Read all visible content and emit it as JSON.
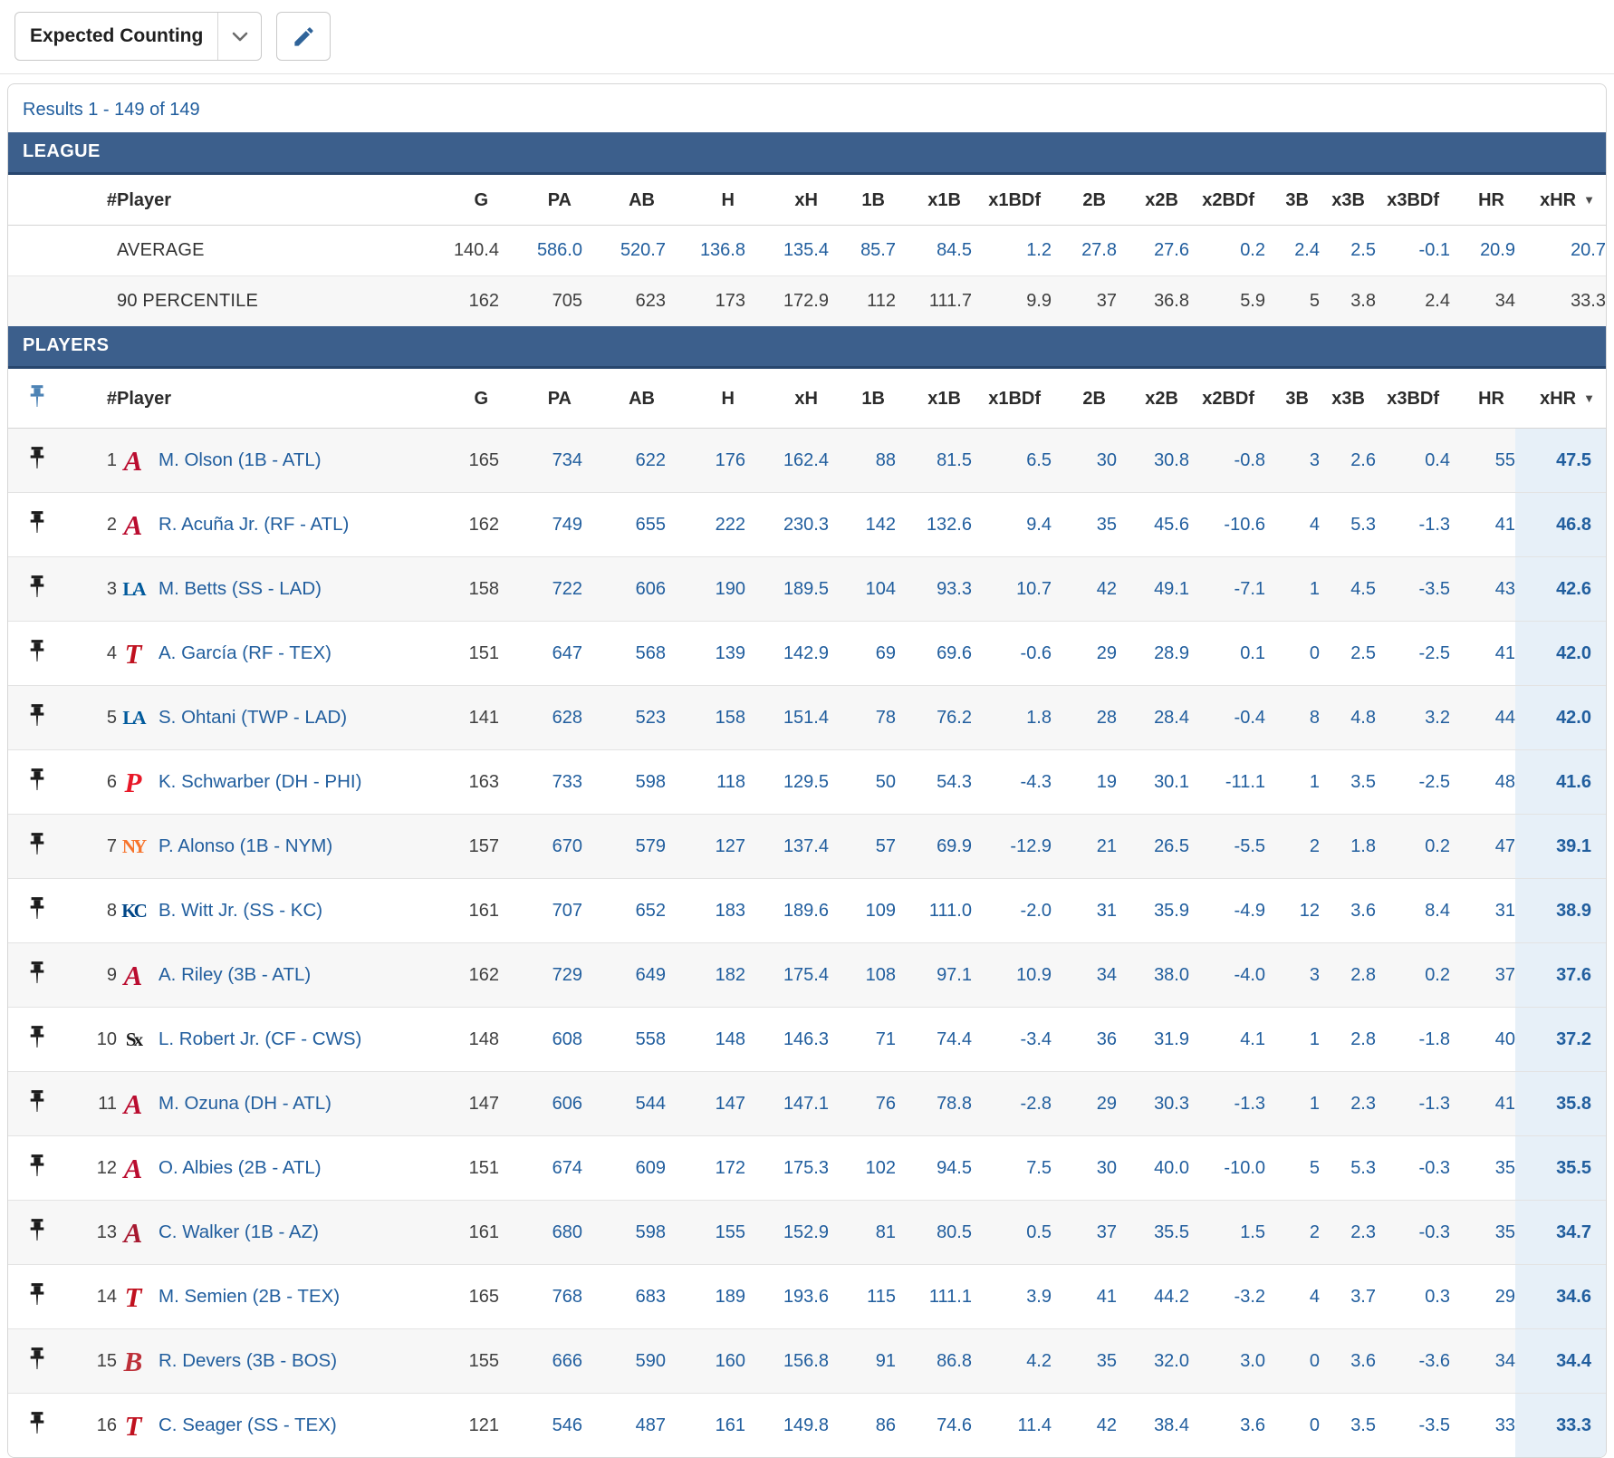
{
  "toolbar": {
    "view_selected": "Expected Counting"
  },
  "results_summary": "Results 1 - 149 of 149",
  "table": {
    "rank_header": "#",
    "player_header": "Player",
    "stat_columns": [
      "G",
      "PA",
      "AB",
      "H",
      "xH",
      "1B",
      "x1B",
      "x1BDf",
      "2B",
      "x2B",
      "x2BDf",
      "3B",
      "x3B",
      "x3BDf",
      "HR",
      "xHR"
    ],
    "sorted_column": "xHR",
    "sort_direction": "desc"
  },
  "league": {
    "title": "LEAGUE",
    "rows": [
      {
        "label": "AVERAGE",
        "values_blue": true,
        "values": [
          "140.4",
          "586.0",
          "520.7",
          "136.8",
          "135.4",
          "85.7",
          "84.5",
          "1.2",
          "27.8",
          "27.6",
          "0.2",
          "2.4",
          "2.5",
          "-0.1",
          "20.9",
          "20.7"
        ]
      },
      {
        "label": "90 PERCENTILE",
        "values_blue": false,
        "values": [
          "162",
          "705",
          "623",
          "173",
          "172.9",
          "112",
          "111.7",
          "9.9",
          "37",
          "36.8",
          "5.9",
          "5",
          "3.8",
          "2.4",
          "34",
          "33.3"
        ]
      }
    ]
  },
  "players": {
    "title": "PLAYERS",
    "rows": [
      {
        "rank": "1",
        "team": "ATL",
        "name": "M. Olson (1B - ATL)",
        "values": [
          "165",
          "734",
          "622",
          "176",
          "162.4",
          "88",
          "81.5",
          "6.5",
          "30",
          "30.8",
          "-0.8",
          "3",
          "2.6",
          "0.4",
          "55",
          "47.5"
        ]
      },
      {
        "rank": "2",
        "team": "ATL",
        "name": "R. Acuña Jr. (RF - ATL)",
        "values": [
          "162",
          "749",
          "655",
          "222",
          "230.3",
          "142",
          "132.6",
          "9.4",
          "35",
          "45.6",
          "-10.6",
          "4",
          "5.3",
          "-1.3",
          "41",
          "46.8"
        ]
      },
      {
        "rank": "3",
        "team": "LAD",
        "name": "M. Betts (SS - LAD)",
        "values": [
          "158",
          "722",
          "606",
          "190",
          "189.5",
          "104",
          "93.3",
          "10.7",
          "42",
          "49.1",
          "-7.1",
          "1",
          "4.5",
          "-3.5",
          "43",
          "42.6"
        ]
      },
      {
        "rank": "4",
        "team": "TEX",
        "name": "A. García (RF - TEX)",
        "values": [
          "151",
          "647",
          "568",
          "139",
          "142.9",
          "69",
          "69.6",
          "-0.6",
          "29",
          "28.9",
          "0.1",
          "0",
          "2.5",
          "-2.5",
          "41",
          "42.0"
        ]
      },
      {
        "rank": "5",
        "team": "LAD",
        "name": "S. Ohtani (TWP - LAD)",
        "values": [
          "141",
          "628",
          "523",
          "158",
          "151.4",
          "78",
          "76.2",
          "1.8",
          "28",
          "28.4",
          "-0.4",
          "8",
          "4.8",
          "3.2",
          "44",
          "42.0"
        ]
      },
      {
        "rank": "6",
        "team": "PHI",
        "name": "K. Schwarber (DH - PHI)",
        "values": [
          "163",
          "733",
          "598",
          "118",
          "129.5",
          "50",
          "54.3",
          "-4.3",
          "19",
          "30.1",
          "-11.1",
          "1",
          "3.5",
          "-2.5",
          "48",
          "41.6"
        ]
      },
      {
        "rank": "7",
        "team": "NYM",
        "name": "P. Alonso (1B - NYM)",
        "values": [
          "157",
          "670",
          "579",
          "127",
          "137.4",
          "57",
          "69.9",
          "-12.9",
          "21",
          "26.5",
          "-5.5",
          "2",
          "1.8",
          "0.2",
          "47",
          "39.1"
        ]
      },
      {
        "rank": "8",
        "team": "KC",
        "name": "B. Witt Jr. (SS - KC)",
        "values": [
          "161",
          "707",
          "652",
          "183",
          "189.6",
          "109",
          "111.0",
          "-2.0",
          "31",
          "35.9",
          "-4.9",
          "12",
          "3.6",
          "8.4",
          "31",
          "38.9"
        ]
      },
      {
        "rank": "9",
        "team": "ATL",
        "name": "A. Riley (3B - ATL)",
        "values": [
          "162",
          "729",
          "649",
          "182",
          "175.4",
          "108",
          "97.1",
          "10.9",
          "34",
          "38.0",
          "-4.0",
          "3",
          "2.8",
          "0.2",
          "37",
          "37.6"
        ]
      },
      {
        "rank": "10",
        "team": "CWS",
        "name": "L. Robert Jr. (CF - CWS)",
        "values": [
          "148",
          "608",
          "558",
          "148",
          "146.3",
          "71",
          "74.4",
          "-3.4",
          "36",
          "31.9",
          "4.1",
          "1",
          "2.8",
          "-1.8",
          "40",
          "37.2"
        ]
      },
      {
        "rank": "11",
        "team": "ATL",
        "name": "M. Ozuna (DH - ATL)",
        "values": [
          "147",
          "606",
          "544",
          "147",
          "147.1",
          "76",
          "78.8",
          "-2.8",
          "29",
          "30.3",
          "-1.3",
          "1",
          "2.3",
          "-1.3",
          "41",
          "35.8"
        ]
      },
      {
        "rank": "12",
        "team": "ATL",
        "name": "O. Albies (2B - ATL)",
        "values": [
          "151",
          "674",
          "609",
          "172",
          "175.3",
          "102",
          "94.5",
          "7.5",
          "30",
          "40.0",
          "-10.0",
          "5",
          "5.3",
          "-0.3",
          "35",
          "35.5"
        ]
      },
      {
        "rank": "13",
        "team": "AZ",
        "name": "C. Walker (1B - AZ)",
        "values": [
          "161",
          "680",
          "598",
          "155",
          "152.9",
          "81",
          "80.5",
          "0.5",
          "37",
          "35.5",
          "1.5",
          "2",
          "2.3",
          "-0.3",
          "35",
          "34.7"
        ]
      },
      {
        "rank": "14",
        "team": "TEX",
        "name": "M. Semien (2B - TEX)",
        "values": [
          "165",
          "768",
          "683",
          "189",
          "193.6",
          "115",
          "111.1",
          "3.9",
          "41",
          "44.2",
          "-3.2",
          "4",
          "3.7",
          "0.3",
          "29",
          "34.6"
        ]
      },
      {
        "rank": "15",
        "team": "BOS",
        "name": "R. Devers (3B - BOS)",
        "values": [
          "155",
          "666",
          "590",
          "160",
          "156.8",
          "91",
          "86.8",
          "4.2",
          "35",
          "32.0",
          "3.0",
          "0",
          "3.6",
          "-3.6",
          "34",
          "34.4"
        ]
      },
      {
        "rank": "16",
        "team": "TEX",
        "name": "C. Seager (SS - TEX)",
        "values": [
          "121",
          "546",
          "487",
          "161",
          "149.8",
          "86",
          "74.6",
          "11.4",
          "42",
          "38.4",
          "3.6",
          "0",
          "3.5",
          "-3.5",
          "33",
          "33.3"
        ]
      }
    ]
  },
  "logos": {
    "ATL": {
      "text": "A",
      "color": "#ba0c2f"
    },
    "LAD": {
      "text": "LA",
      "color": "#005a9c"
    },
    "TEX": {
      "text": "T",
      "color": "#c0111f"
    },
    "PHI": {
      "text": "P",
      "color": "#e81828"
    },
    "NYM": {
      "text": "NY",
      "color": "#f7742c"
    },
    "KC": {
      "text": "KC",
      "color": "#004687"
    },
    "CWS": {
      "text": "Sx",
      "color": "#1a1a1a"
    },
    "AZ": {
      "text": "A",
      "color": "#a71930"
    },
    "BOS": {
      "text": "B",
      "color": "#bd3039"
    }
  },
  "colors": {
    "section_bar": "#3c5f8c",
    "section_bar_border": "#27466e",
    "link_blue": "#215e9e",
    "value_dark": "#3f3f3f",
    "sorted_column_bg": "#e7f0f8",
    "row_alt_bg": "#f7f7f7",
    "pin_header": "#4d83b5",
    "pin_row": "#1c1c1c"
  }
}
